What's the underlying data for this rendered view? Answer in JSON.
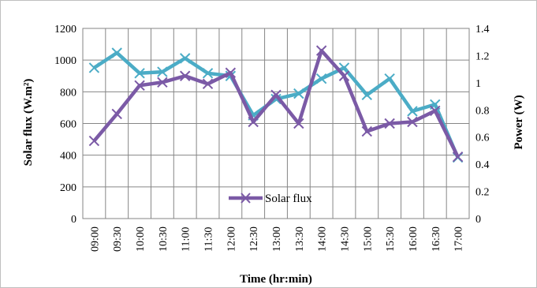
{
  "chart_data": {
    "type": "line",
    "x_categories": [
      "09:00",
      "09:30",
      "10:00",
      "10:30",
      "11:00",
      "11:30",
      "12:00",
      "12:30",
      "13:00",
      "13:30",
      "14:00",
      "14:30",
      "15:00",
      "15:30",
      "16:00",
      "16:30",
      "17:00"
    ],
    "xlabel": "Time (hr:min)",
    "ylabel_left": "Solar flux (W.m²)",
    "ylabel_right": "Power (W)",
    "ylim_left": [
      0,
      1200
    ],
    "ylim_right": [
      0,
      1.4
    ],
    "yticks_left": [
      "0",
      "200",
      "400",
      "600",
      "800",
      "1000",
      "1200"
    ],
    "yticks_right": [
      "0",
      "0.2",
      "0.4",
      "0.6",
      "0.8",
      "1",
      "1.2",
      "1.4"
    ],
    "grid": true,
    "legend_placement": "bottom-center",
    "series": [
      {
        "name": "Solar flux",
        "axis": "left",
        "color": "#7B5AA6",
        "values": [
          490,
          660,
          840,
          860,
          900,
          850,
          920,
          610,
          780,
          600,
          1060,
          900,
          550,
          600,
          610,
          680,
          390
        ]
      },
      {
        "axis": "right",
        "color": "#4BACC6",
        "values": [
          1.11,
          1.22,
          1.07,
          1.08,
          1.18,
          1.07,
          1.05,
          0.76,
          0.88,
          0.92,
          1.03,
          1.11,
          0.91,
          1.03,
          0.79,
          0.84,
          0.45
        ]
      }
    ]
  }
}
